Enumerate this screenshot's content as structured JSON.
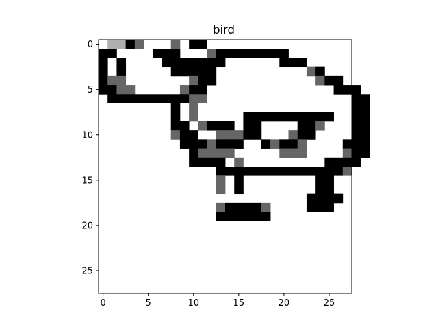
{
  "chart_data": {
    "type": "heatmap",
    "title": "bird",
    "xlabel": "",
    "ylabel": "",
    "colormap": "gray_r",
    "value_range": [
      0,
      255
    ],
    "xlim": [
      -0.5,
      27.5
    ],
    "ylim": [
      27.5,
      -0.5
    ],
    "x_ticks": [
      0,
      5,
      10,
      15,
      20,
      25
    ],
    "y_ticks": [
      0,
      5,
      10,
      15,
      20,
      25
    ],
    "x_tick_labels": [
      "0",
      "5",
      "10",
      "15",
      "20",
      "25"
    ],
    "y_tick_labels": [
      "0",
      "5",
      "10",
      "15",
      "20",
      "25"
    ],
    "grid": false,
    "ink_rows": [
      "011280008022000000000000000000",
      "229000222000822222222000000000",
      "202000022222220000002220000000",
      "202000002222200000000008200000",
      "288000000082200000000000822000",
      "228800000822000000000000002220",
      "022222222288000000000000000022",
      "000000002080000000000000000022",
      "000000002080000022222222220022",
      "000000002208222022000022800022",
      "000000008220088822000822000022",
      "000000000222822200282280000222",
      "000000000028888000008880000822",
      "000000000022220800000000022220",
      "000000000000022222222222222800",
      "000000000000080200000000220000",
      "000000000000080200000000220000",
      "000000000000000000000002222000",
      "000000000000082222800002220000",
      "000000000000022222200000000000"
    ],
    "ink_levels": {
      "0": 0,
      "8": 153,
      "1": 80,
      "2": 255
    }
  }
}
